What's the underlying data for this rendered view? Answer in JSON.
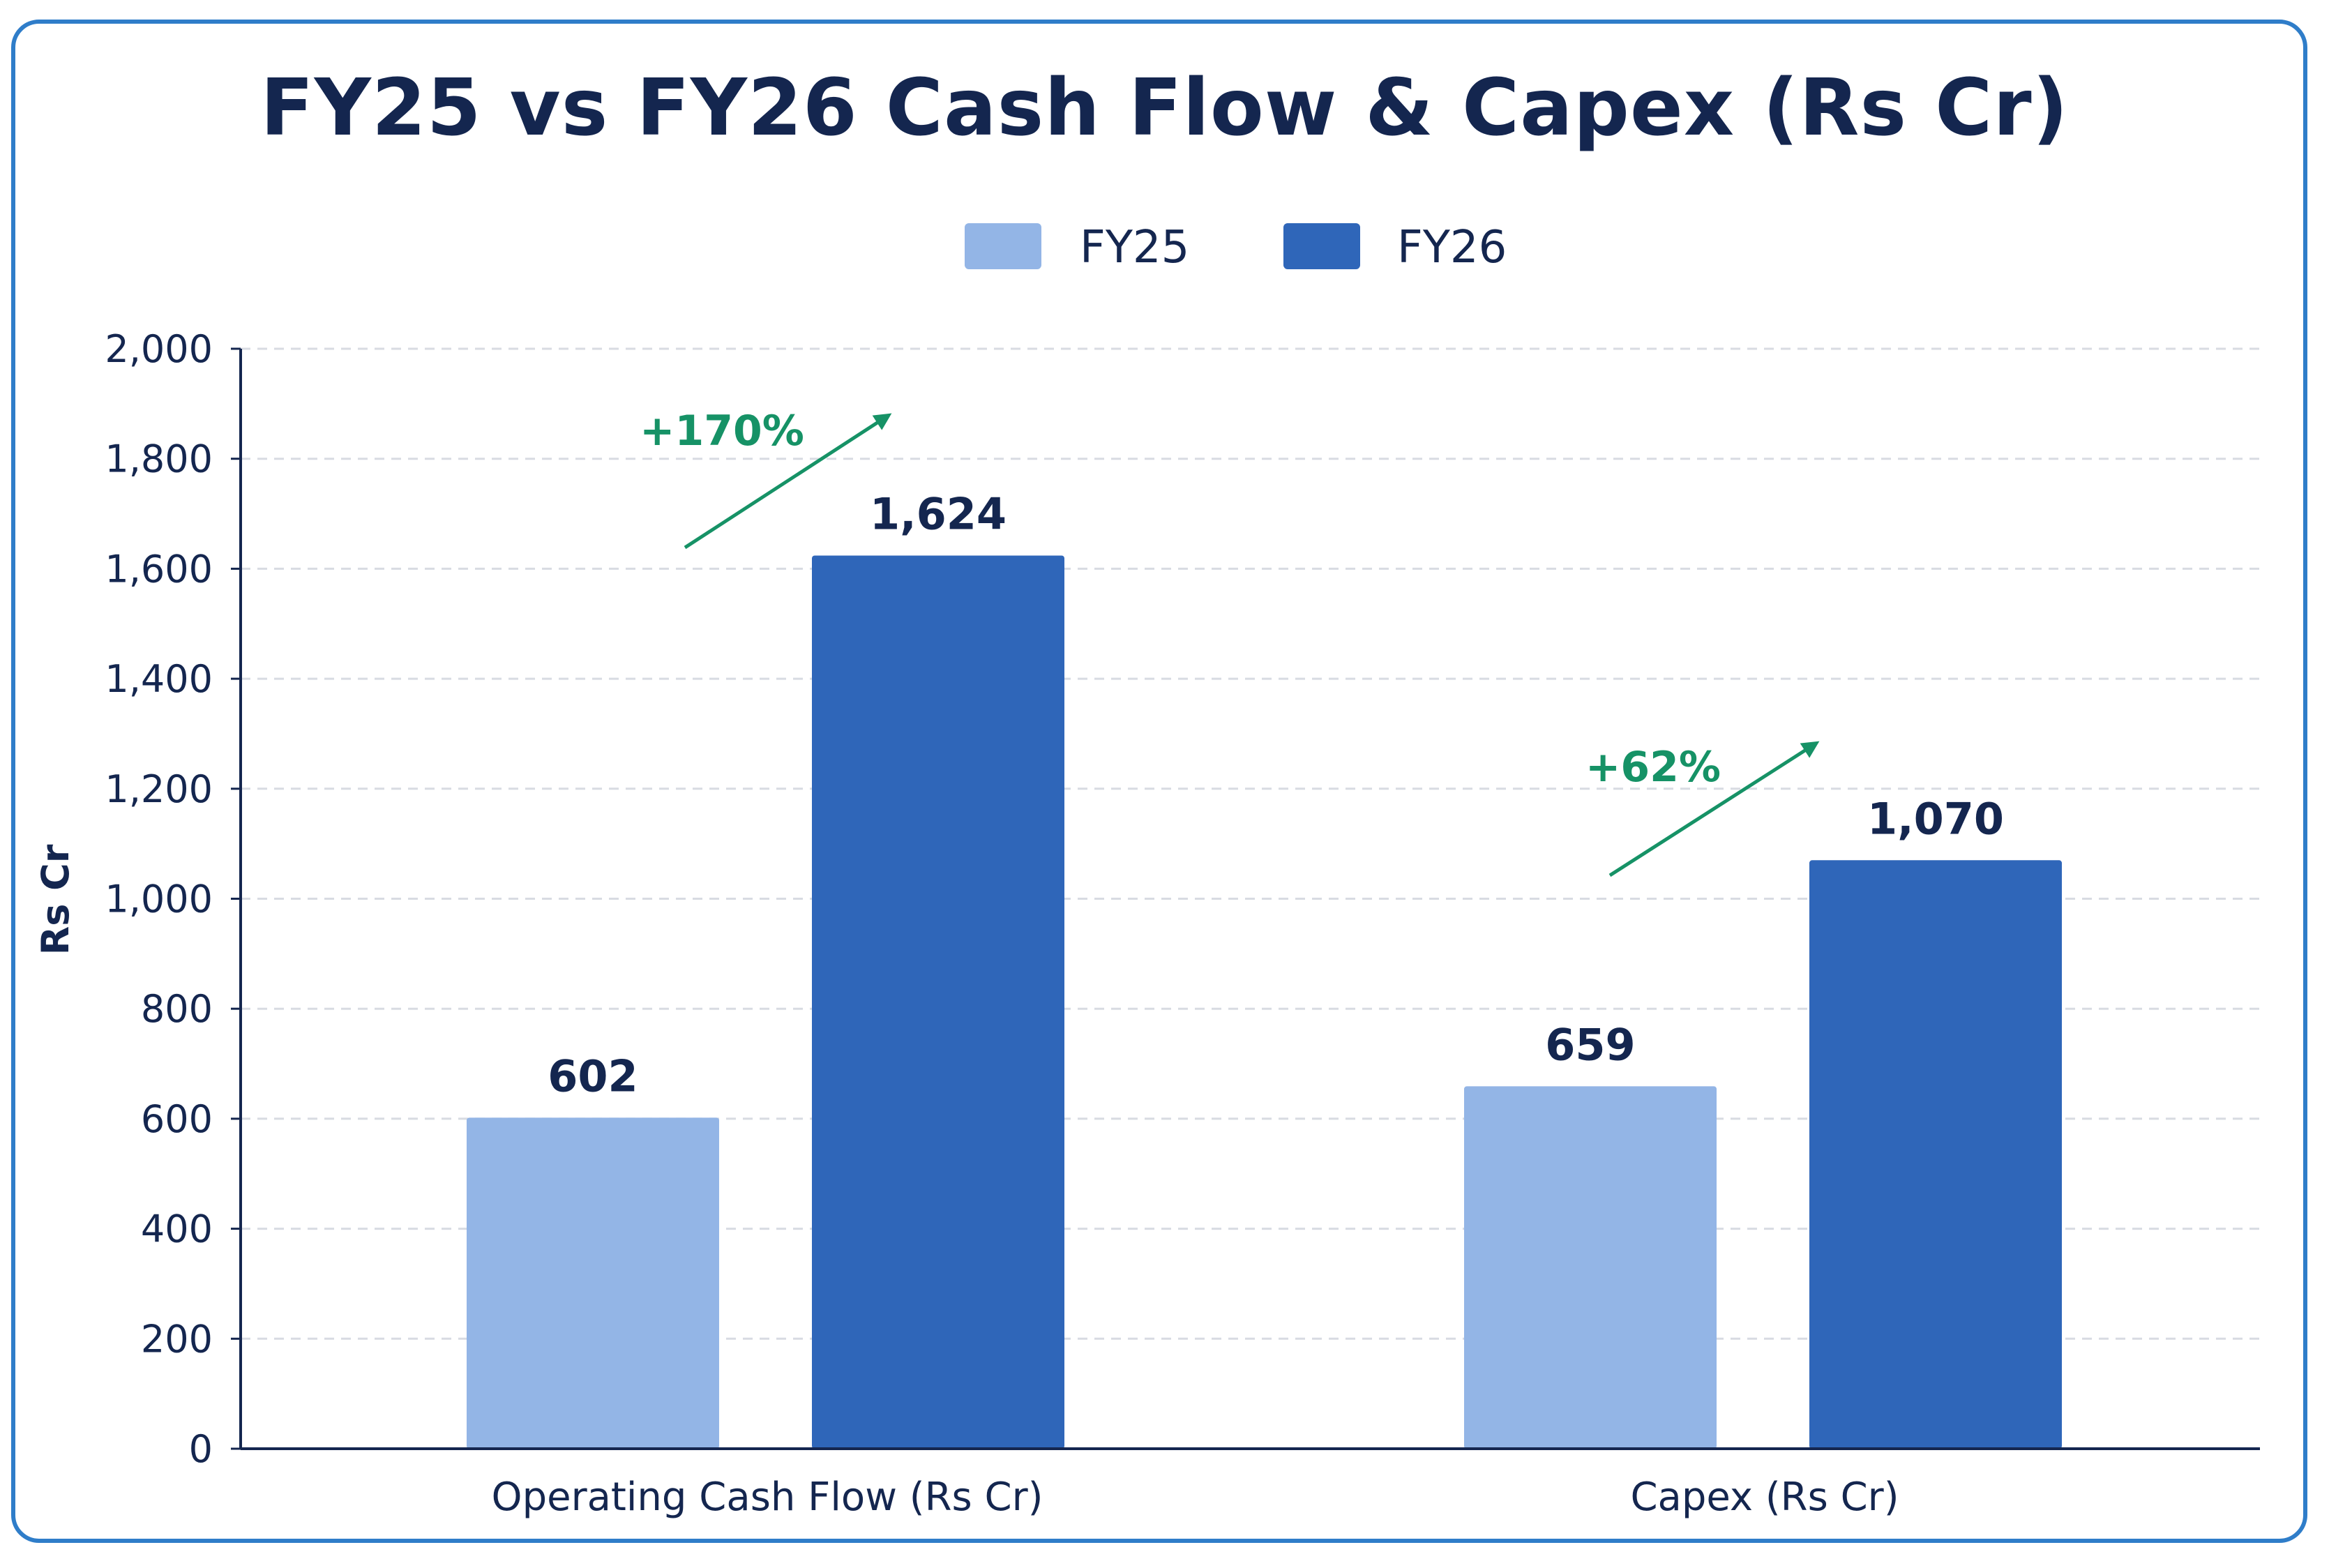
{
  "colors": {
    "fy25": "#93b5e6",
    "fy26": "#2f66b9",
    "growth": "#169266",
    "text": "#14264f",
    "grid": "#d8dbe2",
    "border": "#2f7dc9"
  },
  "chart_data": {
    "type": "bar",
    "title": "FY25 vs FY26 Cash Flow & Capex (Rs Cr)",
    "ylabel": "Rs Cr",
    "xlabel": "",
    "ylim": [
      0,
      2000
    ],
    "yticks": [
      0,
      200,
      400,
      600,
      800,
      1000,
      1200,
      1400,
      1600,
      1800,
      2000
    ],
    "ytick_labels": [
      "0",
      "200",
      "400",
      "600",
      "800",
      "1,000",
      "1,200",
      "1,400",
      "1,600",
      "1,800",
      "2,000"
    ],
    "grid": true,
    "legend_position": "top-center",
    "categories": [
      "Operating Cash Flow (Rs Cr)",
      "Capex (Rs Cr)"
    ],
    "series": [
      {
        "name": "FY25",
        "values": [
          602,
          659
        ],
        "value_labels": [
          "602",
          "659"
        ]
      },
      {
        "name": "FY26",
        "values": [
          1624,
          1070
        ],
        "value_labels": [
          "1,624",
          "1,070"
        ]
      }
    ],
    "annotations": [
      "+170%",
      "+62%"
    ]
  }
}
